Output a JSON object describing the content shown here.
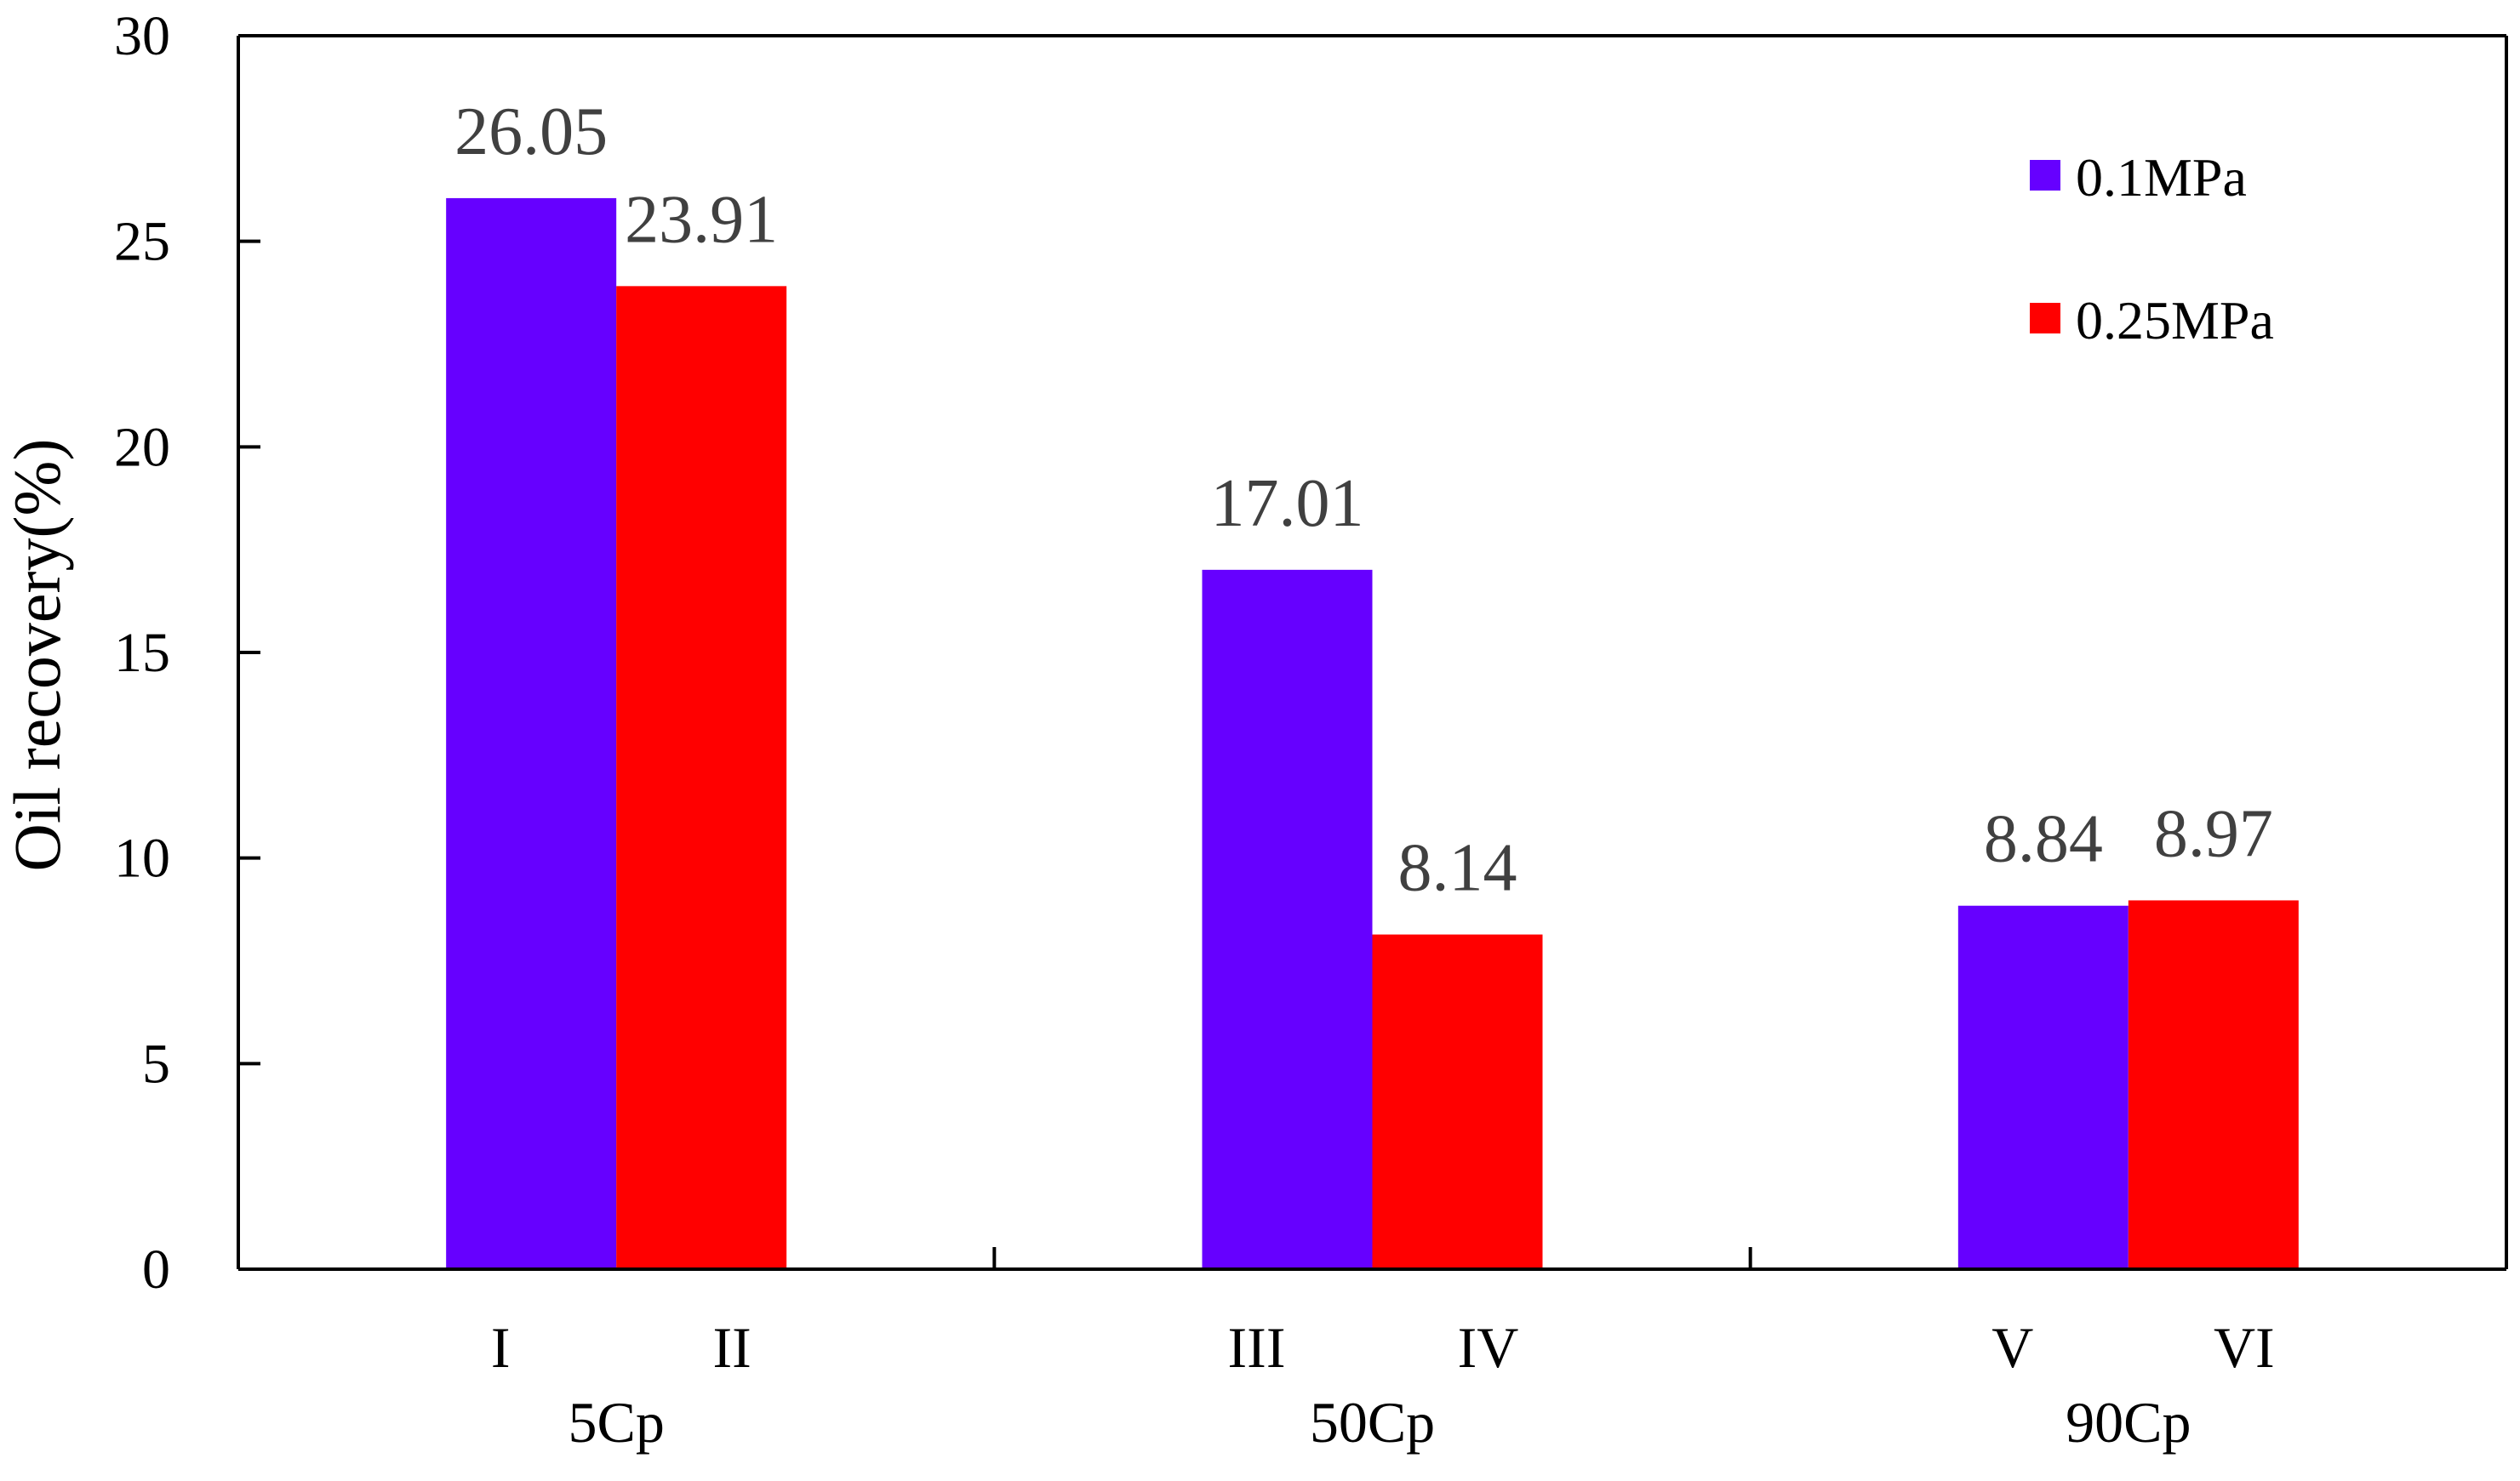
{
  "chart_data": {
    "type": "bar",
    "title": "",
    "xlabel": "",
    "ylabel": "Oil recovery(%)",
    "ylim": [
      0,
      30
    ],
    "yticks": [
      0,
      5,
      10,
      15,
      20,
      25,
      30
    ],
    "categories": [
      "5Cp",
      "50Cp",
      "90Cp"
    ],
    "bar_labels": [
      [
        "I",
        "II"
      ],
      [
        "III",
        "IV"
      ],
      [
        "V",
        "VI"
      ]
    ],
    "series": [
      {
        "name": "0.1MPa",
        "color": "#6600ff",
        "values": [
          26.05,
          17.01,
          8.84
        ],
        "labels": [
          "26.05",
          "17.01",
          "8.84"
        ]
      },
      {
        "name": "0.25MPa",
        "color": "#ff0000",
        "values": [
          23.91,
          8.14,
          8.97
        ],
        "labels": [
          "23.91",
          "8.14",
          "8.97"
        ]
      }
    ],
    "legend_position": "top-right",
    "grid": false
  }
}
